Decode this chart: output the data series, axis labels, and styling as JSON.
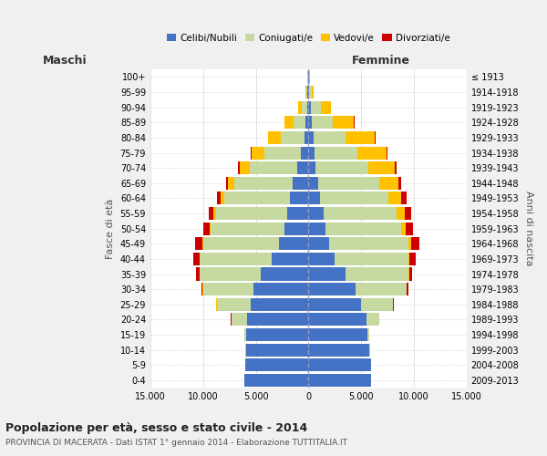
{
  "age_groups": [
    "0-4",
    "5-9",
    "10-14",
    "15-19",
    "20-24",
    "25-29",
    "30-34",
    "35-39",
    "40-44",
    "45-49",
    "50-54",
    "55-59",
    "60-64",
    "65-69",
    "70-74",
    "75-79",
    "80-84",
    "85-89",
    "90-94",
    "95-99",
    "100+"
  ],
  "birth_years": [
    "2009-2013",
    "2004-2008",
    "1999-2003",
    "1994-1998",
    "1989-1993",
    "1984-1988",
    "1979-1983",
    "1974-1978",
    "1969-1973",
    "1964-1968",
    "1959-1963",
    "1954-1958",
    "1949-1953",
    "1944-1948",
    "1939-1943",
    "1934-1938",
    "1929-1933",
    "1924-1928",
    "1919-1923",
    "1914-1918",
    "≤ 1913"
  ],
  "colors": {
    "celibi": "#4472c4",
    "coniugati": "#c5d9a0",
    "vedovi": "#ffc000",
    "divorziati": "#cc0000"
  },
  "males": {
    "celibi": [
      6100,
      6000,
      5900,
      5900,
      5800,
      5500,
      5200,
      4500,
      3500,
      2800,
      2300,
      2000,
      1800,
      1500,
      1100,
      700,
      400,
      250,
      150,
      80,
      50
    ],
    "coniugati": [
      10,
      20,
      50,
      200,
      1500,
      3200,
      4800,
      5800,
      6800,
      7200,
      7000,
      6800,
      6200,
      5500,
      4500,
      3500,
      2200,
      1200,
      500,
      100,
      30
    ],
    "vedovi": [
      5,
      5,
      5,
      5,
      10,
      20,
      20,
      30,
      40,
      60,
      100,
      180,
      350,
      600,
      900,
      1200,
      1200,
      800,
      350,
      80,
      20
    ],
    "divorziati": [
      5,
      5,
      5,
      10,
      30,
      80,
      150,
      300,
      550,
      700,
      600,
      450,
      350,
      200,
      150,
      80,
      50,
      30,
      20,
      10,
      5
    ]
  },
  "females": {
    "celibi": [
      5900,
      5900,
      5800,
      5600,
      5500,
      5000,
      4500,
      3500,
      2500,
      2000,
      1600,
      1400,
      1100,
      900,
      700,
      600,
      500,
      300,
      200,
      80,
      50
    ],
    "coniugati": [
      10,
      15,
      30,
      150,
      1200,
      3000,
      4800,
      6000,
      7000,
      7500,
      7200,
      7000,
      6500,
      5800,
      5000,
      4000,
      3000,
      2000,
      1000,
      200,
      30
    ],
    "vedovi": [
      5,
      5,
      5,
      5,
      10,
      20,
      30,
      60,
      100,
      200,
      400,
      700,
      1200,
      1800,
      2500,
      2800,
      2800,
      2000,
      900,
      200,
      30
    ],
    "divorziati": [
      5,
      5,
      5,
      10,
      30,
      80,
      150,
      300,
      550,
      800,
      700,
      600,
      500,
      300,
      200,
      100,
      60,
      40,
      20,
      10,
      5
    ]
  },
  "xlim": 15000,
  "title": "Popolazione per età, sesso e stato civile - 2014",
  "subtitle": "PROVINCIA DI MACERATA - Dati ISTAT 1° gennaio 2014 - Elaborazione TUTTITALIA.IT",
  "ylabel_left": "Fasce di età",
  "ylabel_right": "Anni di nascita",
  "label_maschi": "Maschi",
  "label_femmine": "Femmine",
  "legend_labels": [
    "Celibi/Nubili",
    "Coniugati/e",
    "Vedovi/e",
    "Divorziati/e"
  ],
  "bg_color": "#f0f0f0",
  "plot_bg": "#ffffff"
}
